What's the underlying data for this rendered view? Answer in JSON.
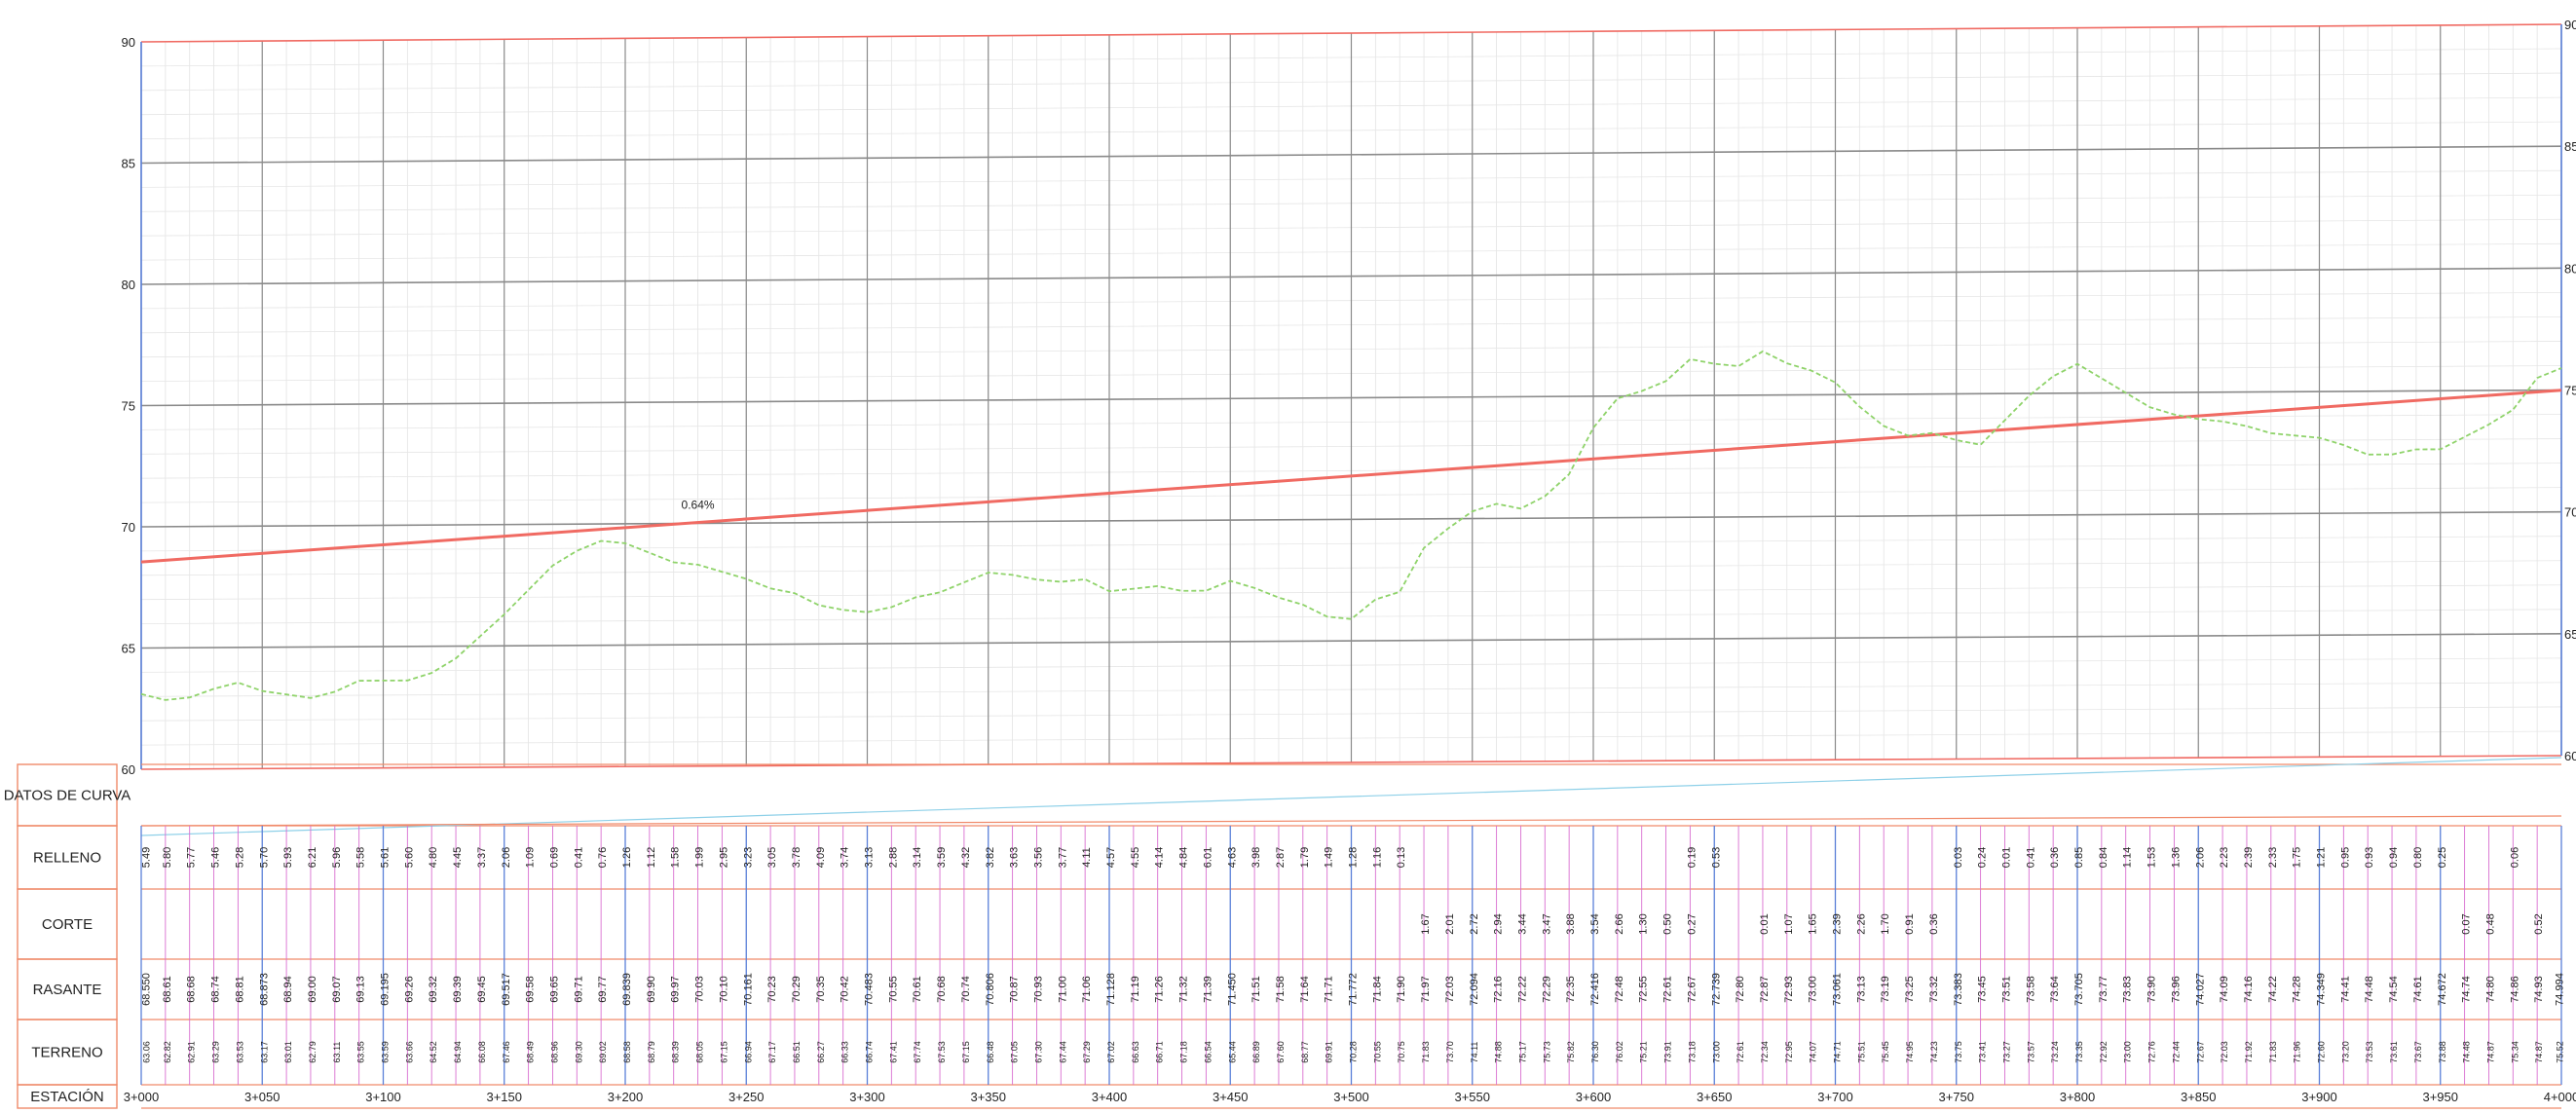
{
  "chart_data": {
    "type": "line",
    "title": "",
    "xlabel": "",
    "ylabel": "",
    "x_range": [
      3000,
      4000
    ],
    "ylim": [
      60,
      90
    ],
    "y_ticks": [
      90,
      85,
      80,
      75,
      70,
      65,
      60
    ],
    "x_tick_labels": [
      "3+000",
      "3+050",
      "3+100",
      "3+150",
      "3+200",
      "3+250",
      "3+300",
      "3+350",
      "3+400",
      "3+450",
      "3+500",
      "3+550",
      "3+600",
      "3+650",
      "3+700",
      "3+750",
      "3+800",
      "3+850",
      "3+900",
      "3+950",
      "4+000"
    ],
    "grade_label": "0.64%",
    "grid": true,
    "series": [
      {
        "kind": "rasante",
        "color": "#f06a62",
        "x": [
          3000,
          4000
        ],
        "y": [
          68.55,
          74.994
        ]
      },
      {
        "kind": "terreno",
        "color": "#8fd36a",
        "dashed": true,
        "x": [
          3000,
          3010,
          3020,
          3030,
          3040,
          3050,
          3060,
          3070,
          3080,
          3090,
          3100,
          3110,
          3120,
          3130,
          3140,
          3150,
          3160,
          3170,
          3180,
          3190,
          3200,
          3210,
          3220,
          3230,
          3240,
          3250,
          3260,
          3270,
          3280,
          3290,
          3300,
          3310,
          3320,
          3330,
          3340,
          3350,
          3360,
          3370,
          3380,
          3390,
          3400,
          3410,
          3420,
          3430,
          3440,
          3450,
          3460,
          3470,
          3480,
          3490,
          3500,
          3510,
          3520,
          3530,
          3540,
          3550,
          3560,
          3570,
          3580,
          3590,
          3600,
          3610,
          3620,
          3630,
          3640,
          3650,
          3660,
          3670,
          3680,
          3690,
          3700,
          3710,
          3720,
          3730,
          3740,
          3750,
          3760,
          3770,
          3780,
          3790,
          3800,
          3810,
          3820,
          3830,
          3840,
          3850,
          3860,
          3870,
          3880,
          3890,
          3900,
          3910,
          3920,
          3930,
          3940,
          3950,
          3960,
          3970,
          3980,
          3990,
          4000
        ],
        "y": [
          63.1,
          62.85,
          62.95,
          63.3,
          63.55,
          63.2,
          63.05,
          62.9,
          63.15,
          63.6,
          63.6,
          63.6,
          63.9,
          64.5,
          65.4,
          66.3,
          67.3,
          68.3,
          68.9,
          69.3,
          69.2,
          68.8,
          68.4,
          68.3,
          68.0,
          67.7,
          67.3,
          67.1,
          66.6,
          66.4,
          66.3,
          66.5,
          66.9,
          67.1,
          67.5,
          67.9,
          67.8,
          67.6,
          67.5,
          67.6,
          67.1,
          67.2,
          67.3,
          67.1,
          67.1,
          67.5,
          67.2,
          66.8,
          66.5,
          66.0,
          65.9,
          66.7,
          67.0,
          68.8,
          69.6,
          70.3,
          70.6,
          70.4,
          70.9,
          71.8,
          73.7,
          74.9,
          75.2,
          75.6,
          76.5,
          76.3,
          76.2,
          76.8,
          76.3,
          76.0,
          75.5,
          74.5,
          73.7,
          73.3,
          73.4,
          73.1,
          72.9,
          73.9,
          74.9,
          75.7,
          76.2,
          75.6,
          75.0,
          74.4,
          74.1,
          73.9,
          73.8,
          73.6,
          73.3,
          73.2,
          73.1,
          72.8,
          72.4,
          72.4,
          72.6,
          72.6,
          73.1,
          73.6,
          74.2,
          75.5,
          75.9
        ]
      }
    ]
  },
  "table": {
    "labels": {
      "datos": "DATOS DE CURVA",
      "relleno": "RELLENO",
      "corte": "CORTE",
      "rasante": "RASANTE",
      "terreno": "TERRENO",
      "estacion": "ESTACIÓN"
    },
    "relleno": [
      "5.49",
      "5.80",
      "5.77",
      "5.46",
      "5.28",
      "5.70",
      "5.93",
      "6.21",
      "5.96",
      "5.58",
      "5.61",
      "5.60",
      "4.80",
      "4.45",
      "3.37",
      "2.06",
      "1.09",
      "0.69",
      "0.41",
      "0.76",
      "1.26",
      "1.12",
      "1.58",
      "1.99",
      "2.95",
      "3.23",
      "3.05",
      "3.78",
      "4.09",
      "3.74",
      "3.13",
      "2.88",
      "3.14",
      "3.59",
      "4.32",
      "3.82",
      "3.63",
      "3.56",
      "3.77",
      "4.11",
      "4.57",
      "4.55",
      "4.14",
      "4.84",
      "6.01",
      "4.63",
      "3.98",
      "2.87",
      "1.79",
      "1.49",
      "1.28",
      "1.16",
      "0.13",
      "",
      "",
      "",
      "",
      "",
      "",
      "",
      "",
      "",
      "",
      "",
      "0.19",
      "0.53",
      "",
      "",
      "",
      "",
      "",
      "",
      "",
      "",
      "",
      "0.03",
      "0.24",
      "0.01",
      "0.41",
      "0.36",
      "0.85",
      "0.84",
      "1.14",
      "1.53",
      "1.36",
      "2.06",
      "2.23",
      "2.39",
      "2.33",
      "1.75",
      "1.21",
      "0.95",
      "0.93",
      "0.94",
      "0.80",
      "0.25",
      "",
      "",
      "0.06",
      ""
    ],
    "corte": [
      "",
      "",
      "",
      "",
      "",
      "",
      "",
      "",
      "",
      "",
      "",
      "",
      "",
      "",
      "",
      "",
      "",
      "",
      "",
      "",
      "",
      "",
      "",
      "",
      "",
      "",
      "",
      "",
      "",
      "",
      "",
      "",
      "",
      "",
      "",
      "",
      "",
      "",
      "",
      "",
      "",
      "",
      "",
      "",
      "",
      "",
      "",
      "",
      "",
      "",
      "",
      "",
      "",
      "1.67",
      "2.01",
      "2.72",
      "2.94",
      "3.44",
      "3.47",
      "3.88",
      "3.54",
      "2.66",
      "1.30",
      "0.50",
      "0.27",
      "",
      "",
      "0.01",
      "1.07",
      "1.65",
      "2.39",
      "2.26",
      "1.70",
      "0.91",
      "0.36",
      "",
      "",
      "",
      "",
      "",
      "",
      "",
      "",
      "",
      "",
      "",
      "",
      "",
      "",
      "",
      "",
      "",
      "",
      "",
      "",
      "",
      "0.07",
      "0.48",
      "",
      "0.52"
    ],
    "rasante": [
      "68.550",
      "68.61",
      "68.68",
      "68.74",
      "68.81",
      "68.873",
      "68.94",
      "69.00",
      "69.07",
      "69.13",
      "69.195",
      "69.26",
      "69.32",
      "69.39",
      "69.45",
      "69.517",
      "69.58",
      "69.65",
      "69.71",
      "69.77",
      "69.839",
      "69.90",
      "69.97",
      "70.03",
      "70.10",
      "70.161",
      "70.23",
      "70.29",
      "70.35",
      "70.42",
      "70.483",
      "70.55",
      "70.61",
      "70.68",
      "70.74",
      "70.806",
      "70.87",
      "70.93",
      "71.00",
      "71.06",
      "71.128",
      "71.19",
      "71.26",
      "71.32",
      "71.39",
      "71.450",
      "71.51",
      "71.58",
      "71.64",
      "71.71",
      "71.772",
      "71.84",
      "71.90",
      "71.97",
      "72.03",
      "72.094",
      "72.16",
      "72.22",
      "72.29",
      "72.35",
      "72.416",
      "72.48",
      "72.55",
      "72.61",
      "72.67",
      "72.739",
      "72.80",
      "72.87",
      "72.93",
      "73.00",
      "73.061",
      "73.13",
      "73.19",
      "73.25",
      "73.32",
      "73.383",
      "73.45",
      "73.51",
      "73.58",
      "73.64",
      "73.705",
      "73.77",
      "73.83",
      "73.90",
      "73.96",
      "74.027",
      "74.09",
      "74.16",
      "74.22",
      "74.28",
      "74.349",
      "74.41",
      "74.48",
      "74.54",
      "74.61",
      "74.672",
      "74.74",
      "74.80",
      "74.86",
      "74.93",
      "74.994"
    ],
    "terreno": [
      "63.06",
      "62.82",
      "62.91",
      "63.29",
      "63.53",
      "63.17",
      "63.01",
      "62.79",
      "63.11",
      "63.55",
      "63.59",
      "63.66",
      "64.52",
      "64.94",
      "66.08",
      "67.46",
      "68.49",
      "68.96",
      "69.30",
      "69.02",
      "68.58",
      "68.79",
      "68.39",
      "68.05",
      "67.15",
      "66.94",
      "67.17",
      "66.51",
      "66.27",
      "66.33",
      "66.74",
      "67.41",
      "67.74",
      "67.53",
      "67.15",
      "66.48",
      "67.05",
      "67.30",
      "67.44",
      "67.29",
      "67.02",
      "66.63",
      "66.71",
      "67.18",
      "66.54",
      "65.44",
      "66.89",
      "67.60",
      "68.77",
      "69.91",
      "70.28",
      "70.55",
      "70.75",
      "71.83",
      "73.70",
      "74.11",
      "74.88",
      "75.17",
      "75.73",
      "75.82",
      "76.30",
      "76.02",
      "75.21",
      "73.91",
      "73.18",
      "73.00",
      "72.61",
      "72.34",
      "72.95",
      "74.07",
      "74.71",
      "75.51",
      "75.45",
      "74.95",
      "74.23",
      "73.75",
      "73.41",
      "73.27",
      "73.57",
      "73.24",
      "73.35",
      "72.92",
      "73.00",
      "72.76",
      "72.44",
      "72.67",
      "72.03",
      "71.92",
      "71.83",
      "71.96",
      "72.60",
      "73.20",
      "73.53",
      "73.61",
      "73.67",
      "73.88",
      "74.48",
      "74.87",
      "75.34",
      "74.87",
      "75.52"
    ],
    "station_labels": [
      "3+000",
      "3+050",
      "3+100",
      "3+150",
      "3+200",
      "3+250",
      "3+300",
      "3+350",
      "3+400",
      "3+450",
      "3+500",
      "3+550",
      "3+600",
      "3+650",
      "3+700",
      "3+750",
      "3+800",
      "3+850",
      "3+900",
      "3+950",
      "4+000"
    ]
  }
}
